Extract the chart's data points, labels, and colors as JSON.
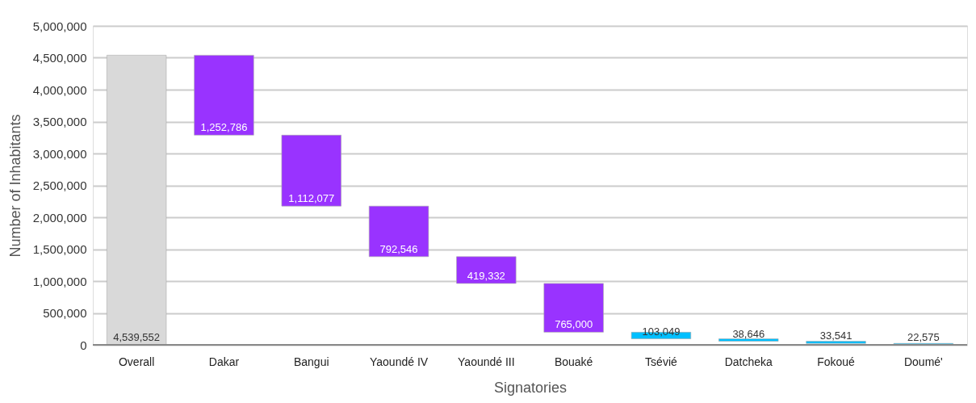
{
  "chart_data": {
    "type": "bar",
    "xlabel": "Signatories",
    "ylabel": "Number of Inhabitants",
    "categories": [
      "Overall",
      "Dakar",
      "Bangui",
      "Yaoundé IV",
      "Yaoundé III",
      "Bouaké",
      "Tsévié",
      "Datcheka",
      "Fokoué",
      "Doumé'"
    ],
    "values": [
      4539552,
      1252786,
      1112077,
      792546,
      419332,
      765000,
      103049,
      38646,
      33541,
      22575
    ],
    "value_labels": [
      "4,539,552",
      "1,252,786",
      "1,112,077",
      "792,546",
      "419,332",
      "765,000",
      "103,049",
      "38,646",
      "33,541",
      "22,575"
    ],
    "base": [
      0,
      3286766,
      2174689,
      1382143,
      962811,
      197811,
      94762,
      56116,
      22575,
      0
    ],
    "colors": [
      "#d9d9d9",
      "#9933ff",
      "#9933ff",
      "#9933ff",
      "#9933ff",
      "#9933ff",
      "#00bfff",
      "#00bfff",
      "#00bfff",
      "#00bfff"
    ],
    "ylim": [
      0,
      5000000
    ],
    "yticks": [
      {
        "value": 0,
        "label": "0"
      },
      {
        "value": 500000,
        "label": "500,000"
      },
      {
        "value": 1000000,
        "label": "1,000,000"
      },
      {
        "value": 1500000,
        "label": "1,500,000"
      },
      {
        "value": 2000000,
        "label": "2,000,000"
      },
      {
        "value": 2500000,
        "label": "2,500,000"
      },
      {
        "value": 3000000,
        "label": "3,000,000"
      },
      {
        "value": 3500000,
        "label": "3,500,000"
      },
      {
        "value": 4000000,
        "label": "4,000,000"
      },
      {
        "value": 4500000,
        "label": "4,500,000"
      },
      {
        "value": 5000000,
        "label": "5,000,000"
      }
    ],
    "grid": "y"
  }
}
